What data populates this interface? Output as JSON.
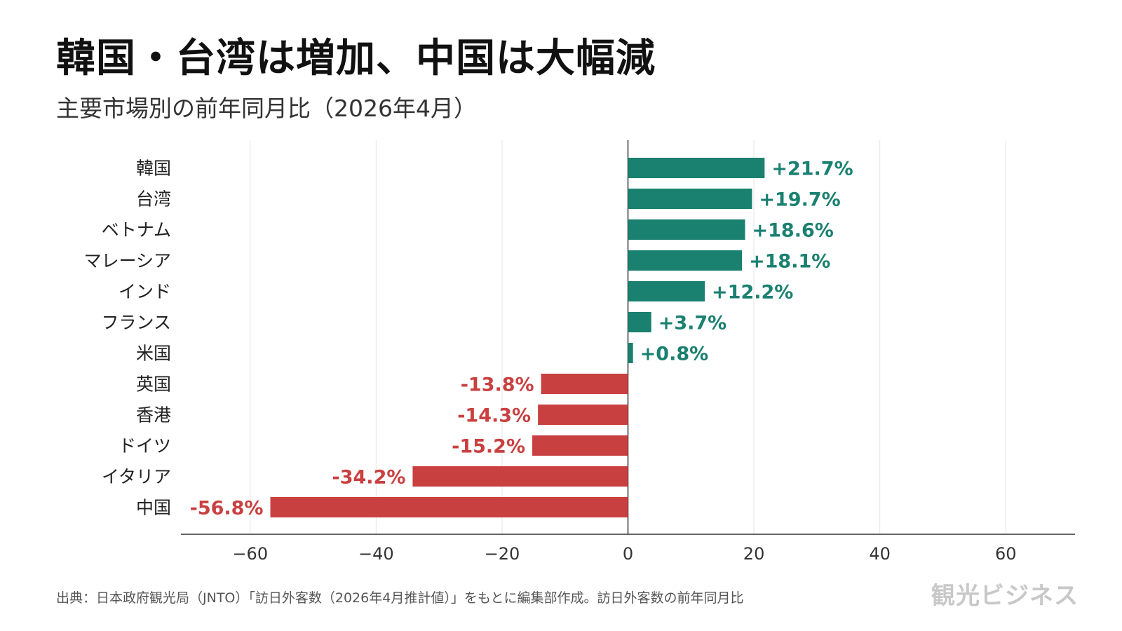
{
  "header": {
    "title": "韓国・台湾は増加、中国は大幅減",
    "subtitle": "主要市場別の前年同月比（2026年4月）"
  },
  "footer": {
    "source": "出典：日本政府観光局（JNTO）「訪日外客数（2026年4月推計値）」をもとに編集部作成。訪日外客数の前年同月比",
    "brand": "観光ビジネス"
  },
  "colors": {
    "positive": "#1a8070",
    "negative": "#c94040",
    "grid": "#e6e6e6",
    "axis": "#333333"
  },
  "chart_data": {
    "type": "bar",
    "orientation": "horizontal",
    "categories": [
      "韓国",
      "台湾",
      "ベトナム",
      "マレーシア",
      "インド",
      "フランス",
      "米国",
      "英国",
      "香港",
      "ドイツ",
      "イタリア",
      "中国"
    ],
    "values": [
      21.7,
      19.7,
      18.6,
      18.1,
      12.2,
      3.7,
      0.8,
      -13.8,
      -14.3,
      -15.2,
      -34.2,
      -56.8
    ],
    "data_labels": [
      "+21.7%",
      "+19.7%",
      "+18.6%",
      "+18.1%",
      "+12.2%",
      "+3.7%",
      "+0.8%",
      "-13.8%",
      "-14.3%",
      "-15.2%",
      "-34.2%",
      "-56.8%"
    ],
    "xlim": [
      -71,
      71
    ],
    "xticks": [
      -60,
      -40,
      -20,
      0,
      20,
      40,
      60
    ],
    "xtick_labels": [
      "−60",
      "−40",
      "−20",
      "0",
      "20",
      "40",
      "60"
    ],
    "grid": "vertical",
    "xlabel": "",
    "ylabel": ""
  }
}
